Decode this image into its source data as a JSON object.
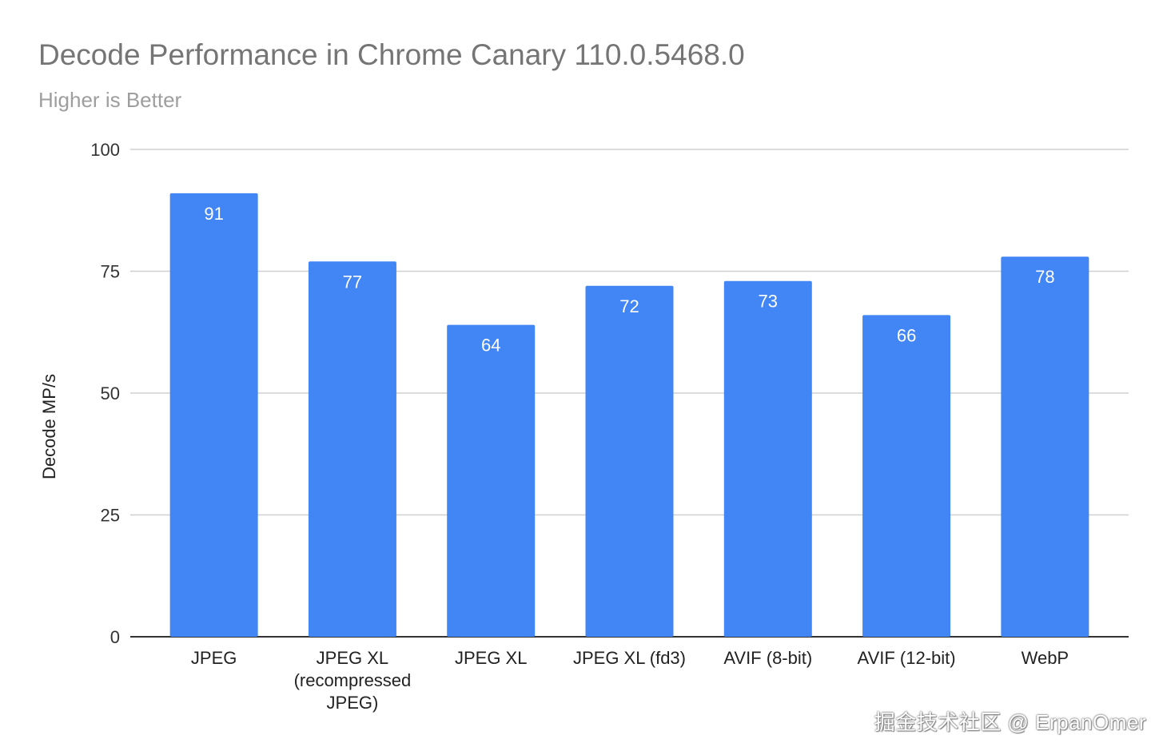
{
  "chart_data": {
    "type": "bar",
    "title": "Decode Performance in Chrome Canary 110.0.5468.0",
    "subtitle": "Higher is Better",
    "xlabel": "",
    "ylabel": "Decode MP/s",
    "ylim": [
      0,
      100
    ],
    "yticks": [
      "0",
      "25",
      "50",
      "75",
      "100"
    ],
    "categories": [
      [
        "JPEG"
      ],
      [
        "JPEG XL",
        "(recompressed",
        "JPEG)"
      ],
      [
        "JPEG XL"
      ],
      [
        "JPEG XL (fd3)"
      ],
      [
        "AVIF (8-bit)"
      ],
      [
        "AVIF (12-bit)"
      ],
      [
        "WebP"
      ]
    ],
    "values": [
      91,
      77,
      64,
      72,
      73,
      66,
      78
    ],
    "bar_color": "#4285f4",
    "grid": true
  },
  "watermark": "掘金技术社区 @ ErpanOmer"
}
